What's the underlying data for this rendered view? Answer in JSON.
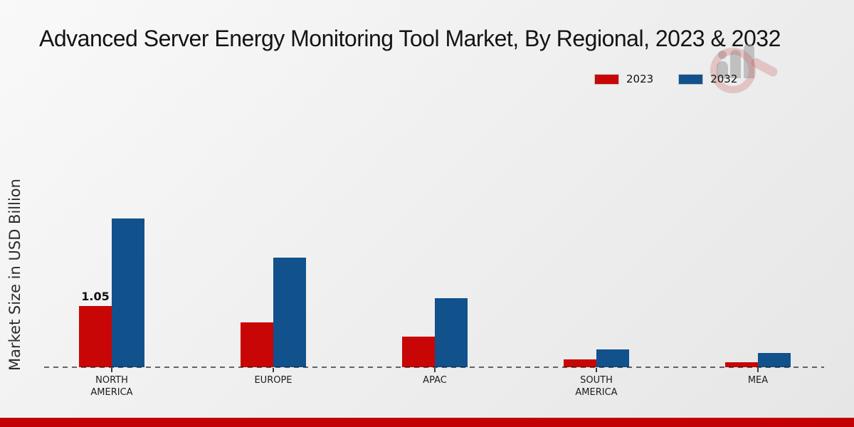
{
  "chart_data": {
    "type": "bar",
    "title": "Advanced Server Energy Monitoring Tool Market, By Regional, 2023 & 2032",
    "ylabel": "Market Size in USD Billion",
    "xlabel": "",
    "categories": [
      "NORTH AMERICA",
      "EUROPE",
      "APAC",
      "SOUTH AMERICA",
      "MEA"
    ],
    "category_lines": [
      [
        "NORTH",
        "AMERICA"
      ],
      [
        "EUROPE"
      ],
      [
        "APAC"
      ],
      [
        "SOUTH",
        "AMERICA"
      ],
      [
        "MEA"
      ]
    ],
    "series": [
      {
        "name": "2023",
        "color": "#c90606",
        "values": [
          1.05,
          0.77,
          0.52,
          0.14,
          0.09
        ]
      },
      {
        "name": "2032",
        "color": "#11518c",
        "values": [
          2.55,
          1.88,
          1.18,
          0.3,
          0.24
        ]
      }
    ],
    "annotations": [
      {
        "category_index": 0,
        "series_index": 0,
        "text": "1.05"
      }
    ],
    "ylim": [
      0,
      3.2
    ],
    "grid": false,
    "baseline": "dashed",
    "legend_position": "top-right"
  },
  "colors": {
    "bar_2023": "#c90606",
    "bar_2032": "#11518c",
    "footer": "#c30101",
    "baseline": "#1a1a1a"
  },
  "footer": {
    "color": "#c30101"
  },
  "watermark": {
    "name": "magnifier-bar-chart-logo"
  }
}
